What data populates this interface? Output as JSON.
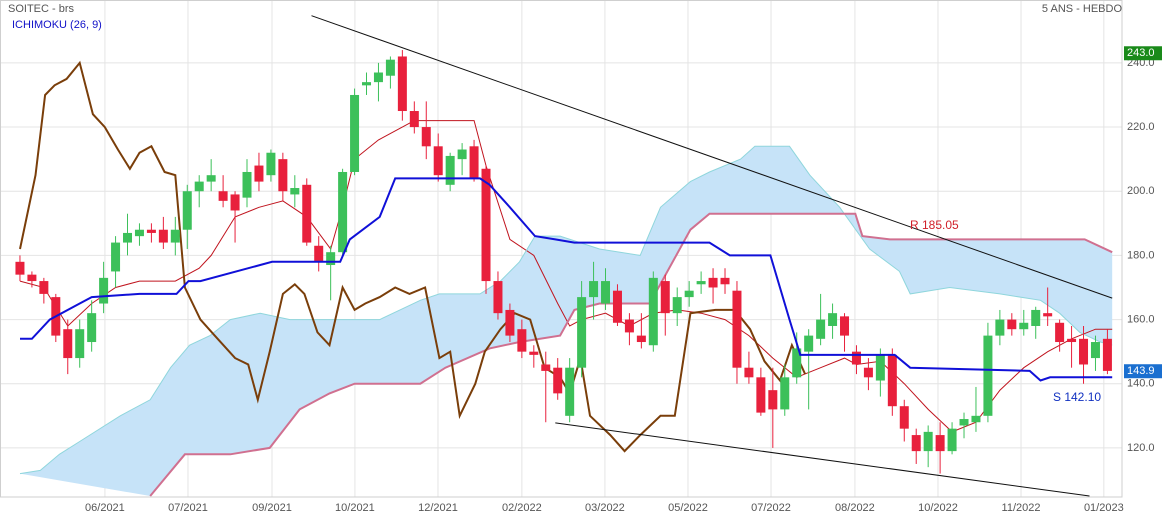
{
  "chart_data": {
    "type": "candlestick",
    "title": "SOITEC - brs",
    "subtitle": "5 ANS - HEBDO",
    "indicator": "ICHIMOKU (26, 9)",
    "indicator_color": "#1010c8",
    "up_color": "#3cc05a",
    "down_color": "#e8203c",
    "grid": true,
    "xlim": [
      -1.67,
      92.22
    ],
    "ylim": [
      104.7,
      259.6
    ],
    "yticks": [
      {
        "value": 120,
        "label": "120.0"
      },
      {
        "value": 140,
        "label": "140.0"
      },
      {
        "value": 160,
        "label": "160.0"
      },
      {
        "value": 180,
        "label": "180.0"
      },
      {
        "value": 200,
        "label": "200.0"
      },
      {
        "value": 220,
        "label": "220.0"
      },
      {
        "value": 240,
        "label": "240.0"
      }
    ],
    "xticks": [
      {
        "value": 7.11,
        "label": "06/2021"
      },
      {
        "value": 14.06,
        "label": "07/2021"
      },
      {
        "value": 21.09,
        "label": "09/2021"
      },
      {
        "value": 28.03,
        "label": "10/2021"
      },
      {
        "value": 34.98,
        "label": "12/2021"
      },
      {
        "value": 42.0,
        "label": "02/2022"
      },
      {
        "value": 48.95,
        "label": "03/2022"
      },
      {
        "value": 55.9,
        "label": "05/2022"
      },
      {
        "value": 62.85,
        "label": "07/2022"
      },
      {
        "value": 69.87,
        "label": "08/2022"
      },
      {
        "value": 76.82,
        "label": "10/2022"
      },
      {
        "value": 83.77,
        "label": "11/2022"
      },
      {
        "value": 90.7,
        "label": "01/2023"
      }
    ],
    "open": [
      178,
      174,
      172,
      167,
      157,
      148,
      153,
      165,
      175,
      184,
      186,
      188,
      188,
      184,
      188,
      200,
      203,
      200,
      199,
      198,
      208,
      205,
      210,
      199,
      202,
      183,
      177,
      181,
      206,
      233,
      234,
      236,
      242,
      225,
      220,
      214,
      202,
      210,
      214,
      207,
      172,
      163,
      157,
      150,
      146,
      145,
      130,
      145,
      167,
      165,
      169,
      160,
      155,
      152,
      172,
      162,
      167,
      171,
      173,
      173,
      169,
      145,
      142,
      138,
      132,
      142,
      150,
      154,
      158,
      161,
      150,
      145,
      141,
      149,
      133,
      124,
      119,
      124,
      119,
      127,
      128,
      130,
      155,
      160,
      157,
      158,
      162,
      159,
      154,
      154,
      148,
      154
    ],
    "high": [
      180,
      175,
      173,
      168,
      160,
      160,
      166,
      178,
      186,
      193,
      190,
      190,
      192,
      192,
      202,
      205,
      210,
      205,
      200,
      210,
      212,
      213,
      212,
      205,
      204,
      186,
      183,
      207,
      232,
      237,
      240,
      242,
      244,
      228,
      228,
      218,
      212,
      215,
      216,
      208,
      175,
      165,
      160,
      152,
      150,
      148,
      148,
      172,
      178,
      176,
      171,
      162,
      162,
      175,
      174,
      170,
      172,
      175,
      176,
      176,
      172,
      150,
      145,
      145,
      146,
      156,
      157,
      168,
      165,
      162,
      152,
      148,
      151,
      151,
      135,
      126,
      127,
      128,
      128,
      131,
      139,
      159,
      163,
      162,
      163,
      164,
      170,
      160,
      158,
      158,
      155,
      157
    ],
    "low": [
      172,
      170,
      165,
      153,
      143,
      145,
      150,
      162,
      170,
      180,
      183,
      184,
      182,
      180,
      182,
      195,
      200,
      195,
      184,
      195,
      200,
      203,
      197,
      195,
      183,
      175,
      166,
      180,
      205,
      230,
      228,
      232,
      222,
      218,
      210,
      203,
      200,
      205,
      203,
      168,
      160,
      153,
      148,
      145,
      128,
      135,
      128,
      142,
      160,
      163,
      158,
      152,
      151,
      150,
      155,
      158,
      164,
      168,
      165,
      168,
      140,
      140,
      130,
      120,
      130,
      140,
      132,
      152,
      154,
      150,
      143,
      138,
      136,
      130,
      122,
      115,
      114,
      112,
      118,
      123,
      125,
      128,
      152,
      155,
      155,
      154,
      158,
      150,
      145,
      140,
      144,
      143
    ],
    "close": [
      174,
      172,
      168,
      155,
      148,
      157,
      162,
      173,
      184,
      187,
      188,
      187,
      184,
      188,
      200,
      203,
      205,
      197,
      194,
      206,
      203,
      212,
      200,
      201,
      184,
      178,
      181,
      206,
      230,
      234,
      237,
      241,
      225,
      220,
      214,
      205,
      211,
      213,
      204,
      172,
      162,
      155,
      150,
      149,
      144,
      137,
      145,
      167,
      172,
      172,
      159,
      156,
      153,
      173,
      162,
      167,
      169,
      172,
      170,
      171,
      145,
      142,
      131,
      132,
      142,
      151,
      155,
      160,
      162,
      155,
      146,
      142,
      149,
      133,
      126,
      119,
      125,
      119,
      126,
      129,
      130,
      155,
      160,
      157,
      159,
      163,
      161,
      153,
      153,
      146,
      153,
      144
    ],
    "lines": [
      {
        "color": "#c0141e",
        "x": [
          0,
          2,
          4,
          6,
          8,
          10,
          13,
          15,
          16,
          18,
          20,
          22,
          24,
          26,
          27,
          28,
          30,
          33,
          37,
          38,
          39,
          41,
          43,
          45,
          46,
          47,
          49,
          51,
          53,
          55,
          57,
          59,
          61,
          63,
          65,
          67,
          69,
          70,
          72,
          74,
          76,
          78,
          80,
          82,
          84,
          86,
          88,
          90,
          91.4
        ],
        "values": [
          172,
          170,
          158,
          165,
          170,
          172,
          172,
          176,
          180,
          192,
          195,
          197,
          192,
          182,
          195,
          210,
          216,
          222,
          222,
          222,
          208,
          185,
          180,
          165,
          158,
          160,
          162,
          158,
          162,
          163,
          162,
          160,
          155,
          148,
          142,
          145,
          148,
          146,
          147,
          140,
          132,
          125,
          128,
          138,
          145,
          150,
          154,
          157,
          157
        ]
      },
      {
        "color": "#1010d8",
        "x": [
          0,
          1,
          2.5,
          5,
          6,
          10,
          13.1,
          14.1,
          15.1,
          20.1,
          21.1,
          26.8,
          27.6,
          30.1,
          31.4,
          38.5,
          39.3,
          41,
          43.1,
          44.8,
          46.4,
          57.7,
          59.4,
          62.8,
          64.4,
          65.3,
          73.2,
          74.5,
          84.5,
          85.4,
          86.2,
          91.4
        ],
        "values": [
          154,
          154,
          160,
          165,
          167,
          168,
          168,
          172,
          172,
          177,
          178,
          178,
          185,
          192,
          204,
          204,
          202,
          195,
          186,
          185,
          184,
          184,
          180,
          180,
          160,
          149,
          149,
          145,
          144,
          141,
          142,
          142
        ]
      },
      {
        "color": "#8fd6dc",
        "x": [
          0,
          1.7,
          3.3,
          5,
          8.4,
          10.9,
          12.6,
          14.2,
          15.9,
          17.6,
          20.1,
          22.6,
          25.1,
          27.6,
          30.1,
          31.8,
          33.5,
          35.1,
          38.5,
          40.2,
          41.8,
          43.1,
          45.2,
          48.5,
          51.9,
          53.6,
          56.1,
          57.7,
          60.3,
          61.5,
          64.4,
          66.1,
          68.6,
          71.1,
          73.6,
          74.5,
          77.8,
          82,
          85.4,
          87,
          88.7,
          90.4,
          91.4
        ],
        "values": [
          112,
          113,
          118,
          122,
          130,
          135,
          145,
          152,
          155,
          160,
          162,
          160,
          160,
          160,
          160,
          163,
          166,
          168,
          168,
          172,
          178,
          186,
          186,
          182,
          180,
          195,
          203,
          206,
          210,
          214,
          214,
          205,
          195,
          182,
          175,
          168,
          170,
          168,
          166,
          162,
          156,
          153,
          152
        ]
      },
      {
        "color": "#d07090",
        "x": [
          10.9,
          13.8,
          17.6,
          20.9,
          23.4,
          25.9,
          28,
          33.5,
          35.6,
          39.3,
          41.8,
          45.2,
          46.4,
          48.5,
          52.7,
          56.1,
          57.7,
          69.9,
          70.5,
          72.8,
          89.1,
          91.4
        ],
        "values": [
          105,
          118,
          118,
          120,
          132,
          137,
          140,
          140,
          145,
          151,
          153,
          155,
          163,
          165,
          165,
          188,
          193,
          193,
          186,
          185,
          185,
          181
        ]
      },
      {
        "color": "#7a3e0a",
        "x": [
          0,
          1.3,
          2.1,
          2.9,
          3.9,
          5,
          6.1,
          7.1,
          8.2,
          9.2,
          10,
          11,
          12.1,
          13,
          13.8,
          15.1,
          16.3,
          18,
          19.1,
          19.9,
          20.9,
          22,
          23,
          23.8,
          24.9,
          25.9,
          27,
          28,
          28.9,
          30.1,
          31.4,
          32.6,
          33.9,
          35.1,
          36,
          36.8,
          38.1,
          38.9,
          40.2,
          41.4,
          42.7,
          43.9,
          45.2,
          46,
          46.9,
          47.7,
          49.4,
          50.6,
          51.9,
          53.6,
          54.8,
          56.1,
          58.2,
          59.8,
          61.1,
          62.3,
          63.6,
          64.6,
          65.7
        ],
        "values": [
          182,
          205,
          230,
          233,
          235,
          240,
          224,
          220,
          213,
          207,
          212,
          214,
          206,
          205,
          170,
          160,
          155,
          148,
          146,
          135,
          150,
          168,
          171,
          168,
          156,
          152,
          170,
          163,
          165,
          167,
          170,
          168,
          170,
          148,
          150,
          130,
          140,
          150,
          157,
          162,
          160,
          145,
          142,
          137,
          148,
          130,
          124,
          119,
          124,
          130,
          130,
          162,
          163,
          163,
          157,
          147,
          141,
          152,
          143
        ]
      }
    ],
    "cloud_color": "#c6e3f8",
    "trendlines": [
      {
        "color": "#111111",
        "x": [
          24.4,
          91.4
        ],
        "values": [
          254.7,
          166.7
        ]
      },
      {
        "color": "#111111",
        "x": [
          44.8,
          89.5
        ],
        "values": [
          127.8,
          105
        ]
      }
    ],
    "annotations": [
      {
        "text": "R 185.05",
        "color": "#d0202a"
      },
      {
        "text": "S 142.10",
        "color": "#1030c0"
      }
    ],
    "price_tags": [
      {
        "value": 243.0,
        "label": "243.0",
        "color": "#1a8a1a"
      },
      {
        "value": 143.9,
        "label": "143.9",
        "color": "#1a6fd0"
      }
    ]
  }
}
